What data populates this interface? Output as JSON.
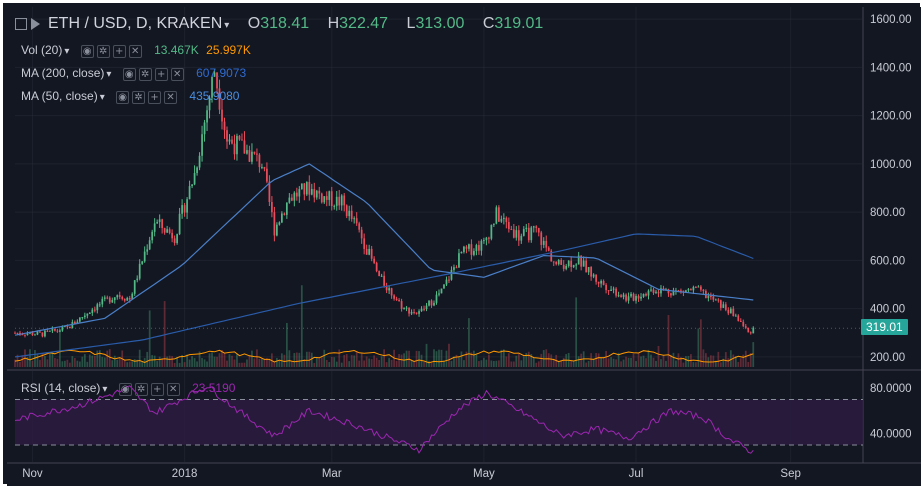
{
  "header": {
    "symbol": "ETH / USD, D, KRAKEN",
    "open_label": "O",
    "open": "318.41",
    "high_label": "H",
    "high": "322.47",
    "low_label": "L",
    "low": "313.00",
    "close_label": "C",
    "close": "319.01"
  },
  "indicators": {
    "vol": {
      "label": "Vol (20)",
      "v1": "13.467K",
      "v2": "25.997K",
      "v1_color": "#53b987",
      "v2_color": "#ff9800"
    },
    "ma200": {
      "label": "MA (200, close)",
      "value": "607.9073",
      "color": "#2a5caa"
    },
    "ma50": {
      "label": "MA (50, close)",
      "value": "435.9080",
      "color": "#4a7fc8"
    },
    "rsi": {
      "label": "RSI (14, close)",
      "value": "23.5190",
      "color": "#9c27b0"
    }
  },
  "legend_controls": [
    "eye-icon",
    "gear-icon",
    "plus-icon",
    "close-icon"
  ],
  "price_axis": {
    "ticks": [
      "1600.00",
      "1400.00",
      "1200.00",
      "1000.00",
      "800.00",
      "600.00",
      "400.00",
      "200.00"
    ],
    "last_price": "319.01"
  },
  "rsi_axis": {
    "ticks": [
      "80.0000",
      "40.0000"
    ]
  },
  "time_axis": {
    "ticks": [
      "Nov",
      "2018",
      "Mar",
      "May",
      "Jul",
      "Sep"
    ]
  },
  "colors": {
    "background": "#131722",
    "up": "#53b987",
    "down": "#eb4d5c",
    "grid": "#2a2e39",
    "text": "#c9ccd4",
    "rsi_band": "#2b1b3f",
    "vol_ma": "#ff9800"
  },
  "chart_data": {
    "type": "candlestick",
    "title": "ETH / USD, D, KRAKEN",
    "ylim": [
      150,
      1650
    ],
    "rsi_ylim": [
      15,
      95
    ],
    "rsi_bands": [
      70,
      30
    ],
    "x_range": [
      "2017-10-25",
      "2018-09-30"
    ],
    "x_ticks": [
      {
        "label": "Nov",
        "date": "2017-11-01"
      },
      {
        "label": "2018",
        "date": "2018-01-01"
      },
      {
        "label": "Mar",
        "date": "2018-03-01"
      },
      {
        "label": "May",
        "date": "2018-05-01"
      },
      {
        "label": "Jul",
        "date": "2018-07-01"
      },
      {
        "label": "Sep",
        "date": "2018-09-01"
      }
    ],
    "price_path": [
      [
        "2017-10-25",
        300
      ],
      [
        "2017-11-05",
        295
      ],
      [
        "2017-11-15",
        320
      ],
      [
        "2017-11-25",
        400
      ],
      [
        "2017-12-05",
        460
      ],
      [
        "2017-12-10",
        440
      ],
      [
        "2017-12-20",
        760
      ],
      [
        "2017-12-28",
        700
      ],
      [
        "2018-01-05",
        960
      ],
      [
        "2018-01-13",
        1390
      ],
      [
        "2018-01-18",
        1100
      ],
      [
        "2018-01-25",
        1060
      ],
      [
        "2018-02-01",
        1000
      ],
      [
        "2018-02-06",
        730
      ],
      [
        "2018-02-12",
        860
      ],
      [
        "2018-02-20",
        900
      ],
      [
        "2018-02-26",
        860
      ],
      [
        "2018-03-05",
        840
      ],
      [
        "2018-03-12",
        720
      ],
      [
        "2018-03-20",
        530
      ],
      [
        "2018-03-30",
        400
      ],
      [
        "2018-04-05",
        380
      ],
      [
        "2018-04-14",
        470
      ],
      [
        "2018-04-22",
        630
      ],
      [
        "2018-05-01",
        670
      ],
      [
        "2018-05-06",
        790
      ],
      [
        "2018-05-15",
        700
      ],
      [
        "2018-05-22",
        720
      ],
      [
        "2018-05-30",
        580
      ],
      [
        "2018-06-08",
        600
      ],
      [
        "2018-06-15",
        520
      ],
      [
        "2018-06-28",
        440
      ],
      [
        "2018-07-08",
        480
      ],
      [
        "2018-07-18",
        470
      ],
      [
        "2018-07-25",
        480
      ],
      [
        "2018-08-02",
        430
      ],
      [
        "2018-08-10",
        370
      ],
      [
        "2018-08-15",
        300
      ],
      [
        "2018-08-17",
        319
      ]
    ],
    "ma200": [
      [
        "2017-10-25",
        200
      ],
      [
        "2017-12-15",
        270
      ],
      [
        "2018-02-15",
        420
      ],
      [
        "2018-04-15",
        540
      ],
      [
        "2018-06-01",
        640
      ],
      [
        "2018-07-01",
        710
      ],
      [
        "2018-07-25",
        700
      ],
      [
        "2018-08-17",
        608
      ]
    ],
    "ma50": [
      [
        "2017-10-25",
        290
      ],
      [
        "2017-11-30",
        360
      ],
      [
        "2017-12-31",
        580
      ],
      [
        "2018-02-05",
        930
      ],
      [
        "2018-02-20",
        1000
      ],
      [
        "2018-03-15",
        840
      ],
      [
        "2018-04-10",
        560
      ],
      [
        "2018-05-01",
        530
      ],
      [
        "2018-05-25",
        620
      ],
      [
        "2018-06-15",
        610
      ],
      [
        "2018-07-10",
        480
      ],
      [
        "2018-08-17",
        436
      ]
    ],
    "rsi": [
      [
        "2017-10-25",
        52
      ],
      [
        "2017-11-20",
        65
      ],
      [
        "2017-12-10",
        80
      ],
      [
        "2017-12-20",
        58
      ],
      [
        "2018-01-10",
        82
      ],
      [
        "2018-01-25",
        56
      ],
      [
        "2018-02-06",
        38
      ],
      [
        "2018-02-20",
        60
      ],
      [
        "2018-03-10",
        48
      ],
      [
        "2018-03-25",
        35
      ],
      [
        "2018-04-05",
        26
      ],
      [
        "2018-04-20",
        60
      ],
      [
        "2018-05-02",
        76
      ],
      [
        "2018-05-20",
        54
      ],
      [
        "2018-06-01",
        38
      ],
      [
        "2018-06-15",
        44
      ],
      [
        "2018-06-28",
        36
      ],
      [
        "2018-07-15",
        60
      ],
      [
        "2018-07-28",
        54
      ],
      [
        "2018-08-08",
        34
      ],
      [
        "2018-08-17",
        23.5
      ]
    ],
    "last": {
      "open": 318.41,
      "high": 322.47,
      "low": 313.0,
      "close": 319.01
    },
    "volume": {
      "ma": 25997,
      "last": 13467
    }
  }
}
